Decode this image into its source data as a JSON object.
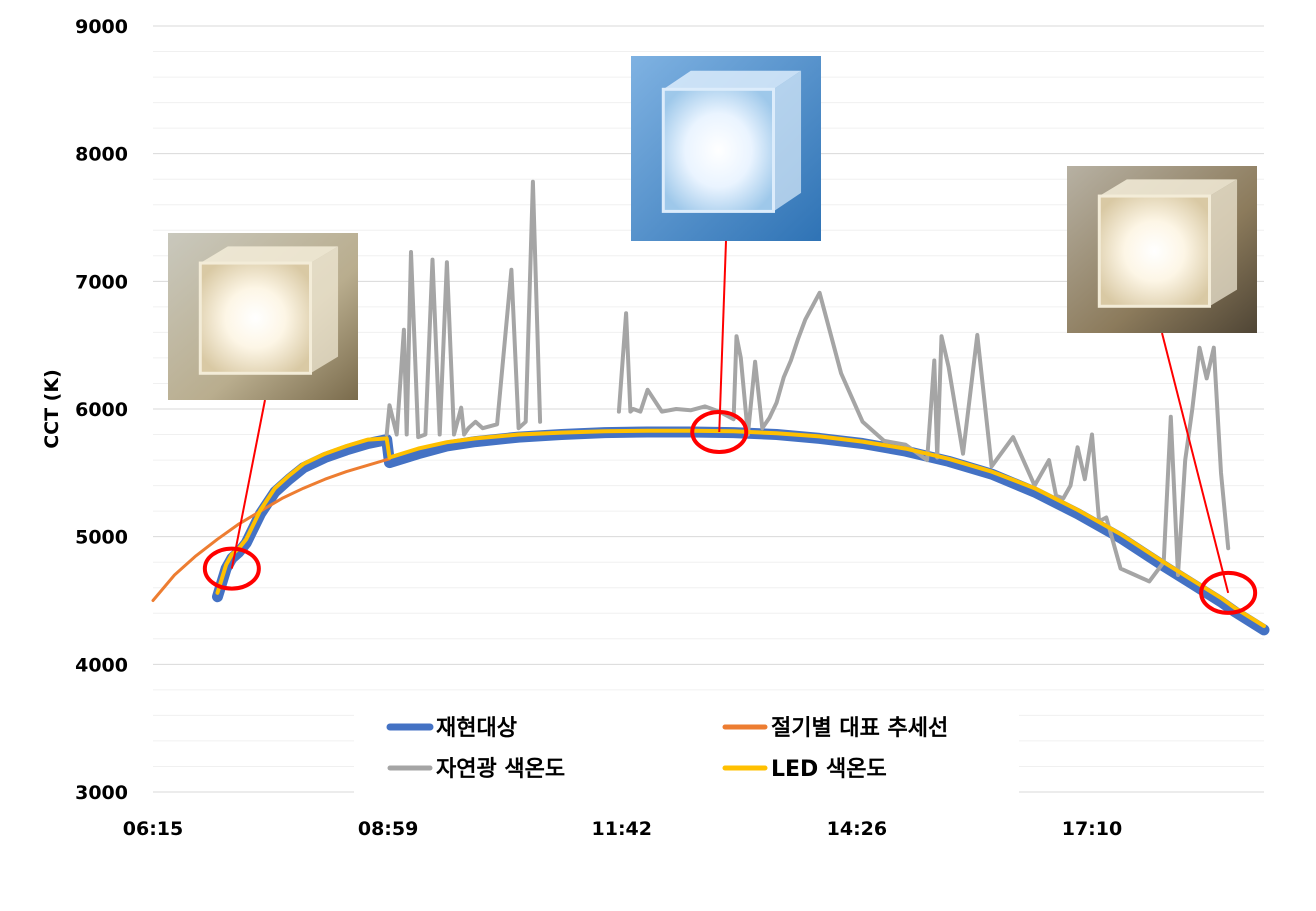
{
  "chart_data": {
    "type": "line",
    "title": "",
    "xlabel": "",
    "ylabel": "CCT (K)",
    "ylim": [
      3000,
      9000
    ],
    "yticks": [
      3000,
      4000,
      5000,
      6000,
      7000,
      8000,
      9000
    ],
    "xlim": [
      "06:15",
      "19:10"
    ],
    "xticks": [
      "06:15",
      "08:59",
      "11:42",
      "14:26",
      "17:10"
    ],
    "grid": true,
    "legend_position": "bottom-center",
    "series": [
      {
        "name": "재현대상",
        "color": "#4472C4",
        "x": [
          "07:00",
          "07:06",
          "07:10",
          "07:15",
          "07:20",
          "07:30",
          "07:40",
          "07:50",
          "08:00",
          "08:15",
          "08:30",
          "08:45",
          "08:58",
          "09:00",
          "09:20",
          "09:40",
          "10:00",
          "10:30",
          "11:00",
          "11:30",
          "12:00",
          "12:30",
          "13:00",
          "13:30",
          "14:00",
          "14:30",
          "15:00",
          "15:30",
          "16:00",
          "16:30",
          "17:00",
          "17:30",
          "18:00",
          "18:20",
          "18:40",
          "18:50",
          "19:10"
        ],
        "y": [
          4530,
          4750,
          4830,
          4880,
          4950,
          5180,
          5350,
          5450,
          5540,
          5620,
          5680,
          5730,
          5760,
          5580,
          5650,
          5710,
          5745,
          5780,
          5800,
          5815,
          5820,
          5820,
          5815,
          5800,
          5770,
          5730,
          5670,
          5590,
          5490,
          5350,
          5180,
          4990,
          4770,
          4630,
          4490,
          4410,
          4270
        ]
      },
      {
        "name": "절기별 대표 추세선",
        "color": "#ED7D31",
        "x": [
          "06:15",
          "06:30",
          "06:45",
          "07:00",
          "07:15",
          "07:30",
          "07:45",
          "08:00",
          "08:15",
          "08:30",
          "08:45",
          "09:00"
        ],
        "y": [
          4500,
          4700,
          4850,
          4980,
          5100,
          5200,
          5300,
          5380,
          5450,
          5510,
          5560,
          5610
        ]
      },
      {
        "name": "자연광 색온도",
        "color": "#A5A5A5",
        "x": [
          "08:58",
          "09:00",
          "09:05",
          "09:10",
          "09:12",
          "09:15",
          "09:20",
          "09:25",
          "09:30",
          "09:35",
          "09:40",
          "09:45",
          "09:50",
          "09:52",
          "09:55",
          "10:00",
          "10:05",
          "10:15",
          "10:25",
          "10:30",
          "10:35",
          "10:40",
          "10:45",
          "10:50",
          "10:52",
          "10:55",
          "11:00",
          "11:40",
          "11:45",
          "11:48",
          "11:50",
          "11:55",
          "12:00",
          "12:10",
          "12:20",
          "12:30",
          "12:40",
          "12:50",
          "13:00",
          "13:02",
          "13:05",
          "13:10",
          "13:15",
          "13:20",
          "13:25",
          "13:30",
          "13:35",
          "13:40",
          "13:45",
          "13:50",
          "14:00",
          "14:15",
          "14:30",
          "14:45",
          "15:00",
          "15:15",
          "15:20",
          "15:22",
          "15:25",
          "15:30",
          "15:40",
          "15:50",
          "16:00",
          "16:15",
          "16:30",
          "16:40",
          "16:45",
          "16:50",
          "16:55",
          "17:00",
          "17:05",
          "17:10",
          "17:15",
          "17:20",
          "17:30",
          "17:40",
          "17:50",
          "18:00",
          "18:05",
          "18:10",
          "18:15",
          "18:20",
          "18:25",
          "18:30",
          "18:35",
          "18:40",
          "18:45"
        ],
        "y": [
          5800,
          6030,
          5800,
          6620,
          5800,
          7230,
          5780,
          5800,
          7170,
          5800,
          7150,
          5800,
          6010,
          5800,
          5850,
          5900,
          5850,
          5880,
          7090,
          5850,
          5900,
          7780,
          5900,
          null,
          null,
          null,
          null,
          5980,
          6750,
          5980,
          6000,
          5980,
          6150,
          5980,
          6000,
          5990,
          6020,
          5980,
          5920,
          6570,
          6400,
          5800,
          6370,
          5850,
          5930,
          6050,
          6250,
          6380,
          6550,
          6700,
          6910,
          6280,
          5900,
          5750,
          5720,
          5600,
          6380,
          5620,
          6570,
          6330,
          5650,
          6580,
          5550,
          5780,
          5400,
          5600,
          5320,
          5300,
          5400,
          5700,
          5450,
          5800,
          5120,
          5150,
          4750,
          4700,
          4650,
          4800,
          5940,
          4700,
          5600,
          6000,
          6480,
          6240,
          6480,
          5500,
          4910
        ]
      },
      {
        "name": "LED 색온도",
        "color": "#FFC000",
        "x": [
          "07:00",
          "07:06",
          "07:10",
          "07:15",
          "07:20",
          "07:30",
          "07:40",
          "07:50",
          "08:00",
          "08:15",
          "08:30",
          "08:45",
          "08:58",
          "09:00",
          "09:20",
          "09:40",
          "10:00",
          "10:30",
          "11:00",
          "11:30",
          "12:00",
          "12:30",
          "13:00",
          "13:30",
          "14:00",
          "14:30",
          "15:00",
          "15:30",
          "16:00",
          "16:30",
          "17:00",
          "17:30",
          "18:00",
          "18:20",
          "18:40",
          "18:50",
          "19:10"
        ],
        "y": [
          4560,
          4780,
          4860,
          4910,
          4980,
          5210,
          5380,
          5480,
          5570,
          5650,
          5710,
          5760,
          5770,
          5620,
          5690,
          5740,
          5770,
          5800,
          5815,
          5825,
          5830,
          5830,
          5825,
          5810,
          5785,
          5745,
          5690,
          5610,
          5510,
          5380,
          5210,
          5020,
          4800,
          4660,
          4520,
          4440,
          4300
        ]
      }
    ],
    "annotations": [
      {
        "type": "circle",
        "label": "dawn",
        "x": "07:10",
        "y": 4750
      },
      {
        "type": "circle",
        "label": "noon",
        "x": "12:50",
        "y": 5820
      },
      {
        "type": "circle",
        "label": "dusk",
        "x": "18:45",
        "y": 4560
      }
    ]
  },
  "images": [
    {
      "name": "warm-cube-photo",
      "tone": "warm"
    },
    {
      "name": "cool-cube-photo",
      "tone": "cool"
    },
    {
      "name": "dusk-cube-photo",
      "tone": "warm"
    }
  ]
}
